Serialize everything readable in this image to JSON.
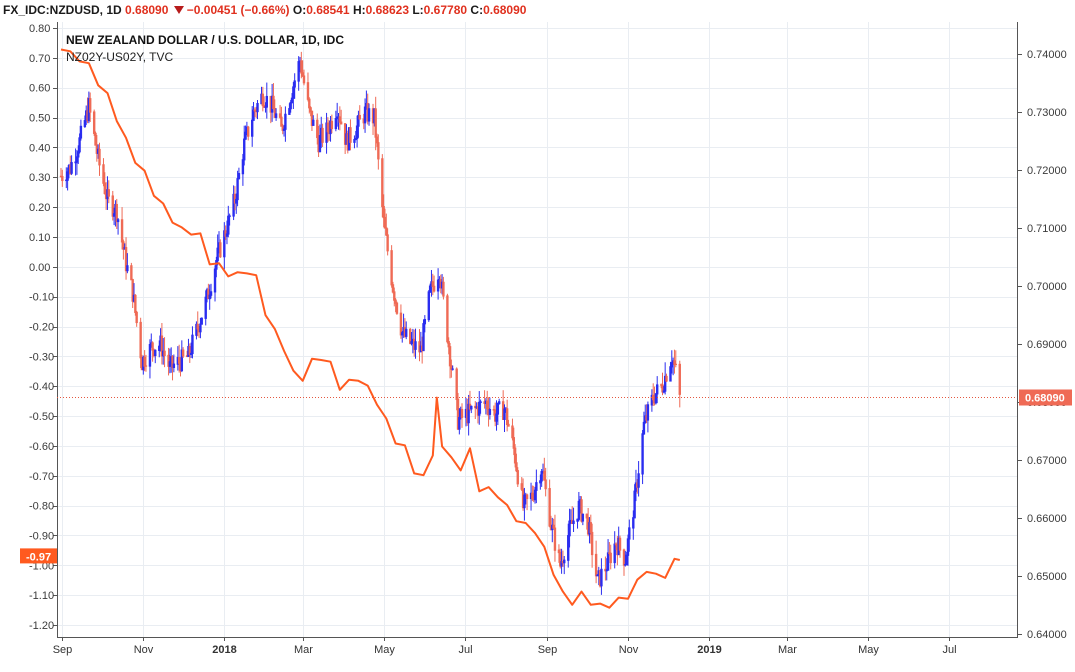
{
  "header": {
    "symbol": "FX_IDC:NZDUSD, 1D",
    "last": "0.68090",
    "change": "−0.00451 (−0.66%)",
    "o_label": "O:",
    "o": "0.68541",
    "h_label": "H:",
    "h": "0.68623",
    "l_label": "L:",
    "l": "0.67780",
    "c_label": "C:",
    "c": "0.68090"
  },
  "chart_data": {
    "type": "line",
    "title": "NEW ZEALAND DOLLAR / U.S. DOLLAR, 1D, IDC",
    "subtitle": "NZ02Y-US02Y, TVC",
    "x_ticks": [
      "Sep",
      "Nov",
      "2018",
      "Mar",
      "May",
      "Jul",
      "Sep",
      "Nov",
      "2019",
      "Mar",
      "May",
      "Jul"
    ],
    "left_axis": {
      "ylim": [
        -1.24,
        0.82
      ],
      "ticks": [
        "0.80",
        "0.70",
        "0.60",
        "0.50",
        "0.40",
        "0.30",
        "0.20",
        "0.10",
        "0.00",
        "-0.10",
        "-0.20",
        "-0.30",
        "-0.40",
        "-0.50",
        "-0.60",
        "-0.70",
        "-0.80",
        "-0.90",
        "-1.00",
        "-1.10",
        "-1.20"
      ],
      "last_value_label": "-0.97"
    },
    "right_axis": {
      "ylim": [
        0.6395,
        0.7455
      ],
      "ticks": [
        "0.74000",
        "0.73000",
        "0.72000",
        "0.71000",
        "0.70000",
        "0.69000",
        "0.68000",
        "0.67000",
        "0.66000",
        "0.65000",
        "0.64000"
      ],
      "last_value_label": "0.68090",
      "last_value": 0.6809
    },
    "grid": true,
    "series": [
      {
        "name": "NZ02Y-US02Y",
        "color": "#ff5a1f",
        "axis": "left",
        "points": [
          [
            "2017-08-31",
            0.74
          ],
          [
            "2017-09-07",
            0.71
          ],
          [
            "2017-09-14",
            0.7
          ],
          [
            "2017-09-21",
            0.67
          ],
          [
            "2017-09-28",
            0.62
          ],
          [
            "2017-10-05",
            0.57
          ],
          [
            "2017-10-12",
            0.5
          ],
          [
            "2017-10-19",
            0.42
          ],
          [
            "2017-10-26",
            0.36
          ],
          [
            "2017-11-02",
            0.31
          ],
          [
            "2017-11-09",
            0.25
          ],
          [
            "2017-11-16",
            0.2
          ],
          [
            "2017-11-23",
            0.16
          ],
          [
            "2017-11-30",
            0.12
          ],
          [
            "2017-12-07",
            0.12
          ],
          [
            "2017-12-14",
            0.1
          ],
          [
            "2017-12-21",
            0.02
          ],
          [
            "2017-12-28",
            0.0
          ],
          [
            "2018-01-04",
            -0.02
          ],
          [
            "2018-01-11",
            -0.03
          ],
          [
            "2018-01-18",
            -0.01
          ],
          [
            "2018-01-25",
            -0.04
          ],
          [
            "2018-02-01",
            -0.15
          ],
          [
            "2018-02-08",
            -0.22
          ],
          [
            "2018-02-15",
            -0.27
          ],
          [
            "2018-02-22",
            -0.36
          ],
          [
            "2018-03-01",
            -0.37
          ],
          [
            "2018-03-08",
            -0.32
          ],
          [
            "2018-03-15",
            -0.3
          ],
          [
            "2018-03-22",
            -0.33
          ],
          [
            "2018-03-29",
            -0.4
          ],
          [
            "2018-04-05",
            -0.39
          ],
          [
            "2018-04-12",
            -0.37
          ],
          [
            "2018-04-19",
            -0.41
          ],
          [
            "2018-04-26",
            -0.45
          ],
          [
            "2018-05-03",
            -0.52
          ],
          [
            "2018-05-10",
            -0.58
          ],
          [
            "2018-05-17",
            -0.61
          ],
          [
            "2018-05-24",
            -0.68
          ],
          [
            "2018-05-31",
            -0.71
          ],
          [
            "2018-06-07",
            -0.62
          ],
          [
            "2018-06-10",
            -0.45
          ],
          [
            "2018-06-14",
            -0.59
          ],
          [
            "2018-06-21",
            -0.65
          ],
          [
            "2018-06-28",
            -0.67
          ],
          [
            "2018-07-05",
            -0.62
          ],
          [
            "2018-07-12",
            -0.74
          ],
          [
            "2018-07-19",
            -0.75
          ],
          [
            "2018-07-26",
            -0.76
          ],
          [
            "2018-08-02",
            -0.81
          ],
          [
            "2018-08-09",
            -0.84
          ],
          [
            "2018-08-16",
            -0.87
          ],
          [
            "2018-08-23",
            -0.88
          ],
          [
            "2018-08-30",
            -0.95
          ],
          [
            "2018-09-06",
            -1.02
          ],
          [
            "2018-09-13",
            -1.1
          ],
          [
            "2018-09-20",
            -1.12
          ],
          [
            "2018-09-27",
            -1.1
          ],
          [
            "2018-10-04",
            -1.12
          ],
          [
            "2018-10-11",
            -1.14
          ],
          [
            "2018-10-18",
            -1.13
          ],
          [
            "2018-10-25",
            -1.12
          ],
          [
            "2018-11-01",
            -1.1
          ],
          [
            "2018-11-08",
            -1.06
          ],
          [
            "2018-11-15",
            -1.01
          ],
          [
            "2018-11-22",
            -1.04
          ],
          [
            "2018-11-29",
            -1.03
          ],
          [
            "2018-12-06",
            -0.99
          ],
          [
            "2018-12-10",
            -0.97
          ]
        ]
      },
      {
        "name": "NZDUSD",
        "type": "ohlc",
        "axis": "right",
        "up_color": "#2a2df0",
        "down_color": "#ef6a55",
        "closes": [
          [
            "2017-08-31",
            0.719
          ],
          [
            "2017-09-07",
            0.7205
          ],
          [
            "2017-09-14",
            0.725
          ],
          [
            "2017-09-21",
            0.731
          ],
          [
            "2017-09-28",
            0.722
          ],
          [
            "2017-10-05",
            0.715
          ],
          [
            "2017-10-12",
            0.713
          ],
          [
            "2017-10-19",
            0.704
          ],
          [
            "2017-10-24",
            0.699
          ],
          [
            "2017-10-31",
            0.687
          ],
          [
            "2017-11-07",
            0.6895
          ],
          [
            "2017-11-14",
            0.69
          ],
          [
            "2017-11-21",
            0.686
          ],
          [
            "2017-11-28",
            0.687
          ],
          [
            "2017-12-05",
            0.688
          ],
          [
            "2017-12-12",
            0.693
          ],
          [
            "2017-12-19",
            0.698
          ],
          [
            "2017-12-26",
            0.7045
          ],
          [
            "2018-01-02",
            0.7095
          ],
          [
            "2018-01-09",
            0.715
          ],
          [
            "2018-01-16",
            0.7245
          ],
          [
            "2018-01-23",
            0.73
          ],
          [
            "2018-01-30",
            0.733
          ],
          [
            "2018-02-06",
            0.731
          ],
          [
            "2018-02-13",
            0.727
          ],
          [
            "2018-02-20",
            0.733
          ],
          [
            "2018-02-27",
            0.739
          ],
          [
            "2018-03-06",
            0.73
          ],
          [
            "2018-03-13",
            0.725
          ],
          [
            "2018-03-20",
            0.727
          ],
          [
            "2018-03-27",
            0.731
          ],
          [
            "2018-04-03",
            0.725
          ],
          [
            "2018-04-10",
            0.727
          ],
          [
            "2018-04-17",
            0.73
          ],
          [
            "2018-04-24",
            0.729
          ],
          [
            "2018-05-01",
            0.711
          ],
          [
            "2018-05-08",
            0.7
          ],
          [
            "2018-05-15",
            0.692
          ],
          [
            "2018-05-22",
            0.69
          ],
          [
            "2018-05-29",
            0.689
          ],
          [
            "2018-06-05",
            0.699
          ],
          [
            "2018-06-12",
            0.703
          ],
          [
            "2018-06-19",
            0.69
          ],
          [
            "2018-06-26",
            0.677
          ],
          [
            "2018-07-03",
            0.678
          ],
          [
            "2018-07-10",
            0.679
          ],
          [
            "2018-07-17",
            0.68
          ],
          [
            "2018-07-24",
            0.678
          ],
          [
            "2018-07-31",
            0.679
          ],
          [
            "2018-08-07",
            0.672
          ],
          [
            "2018-08-14",
            0.662
          ],
          [
            "2018-08-21",
            0.664
          ],
          [
            "2018-08-28",
            0.669
          ],
          [
            "2018-09-04",
            0.659
          ],
          [
            "2018-09-11",
            0.652
          ],
          [
            "2018-09-18",
            0.658
          ],
          [
            "2018-09-25",
            0.662
          ],
          [
            "2018-10-02",
            0.659
          ],
          [
            "2018-10-09",
            0.649
          ],
          [
            "2018-10-16",
            0.652
          ],
          [
            "2018-10-23",
            0.656
          ],
          [
            "2018-10-30",
            0.653
          ],
          [
            "2018-11-06",
            0.663
          ],
          [
            "2018-11-13",
            0.676
          ],
          [
            "2018-11-20",
            0.681
          ],
          [
            "2018-11-27",
            0.683
          ],
          [
            "2018-12-04",
            0.688
          ],
          [
            "2018-12-07",
            0.6854
          ],
          [
            "2018-12-10",
            0.6809
          ]
        ]
      }
    ]
  }
}
